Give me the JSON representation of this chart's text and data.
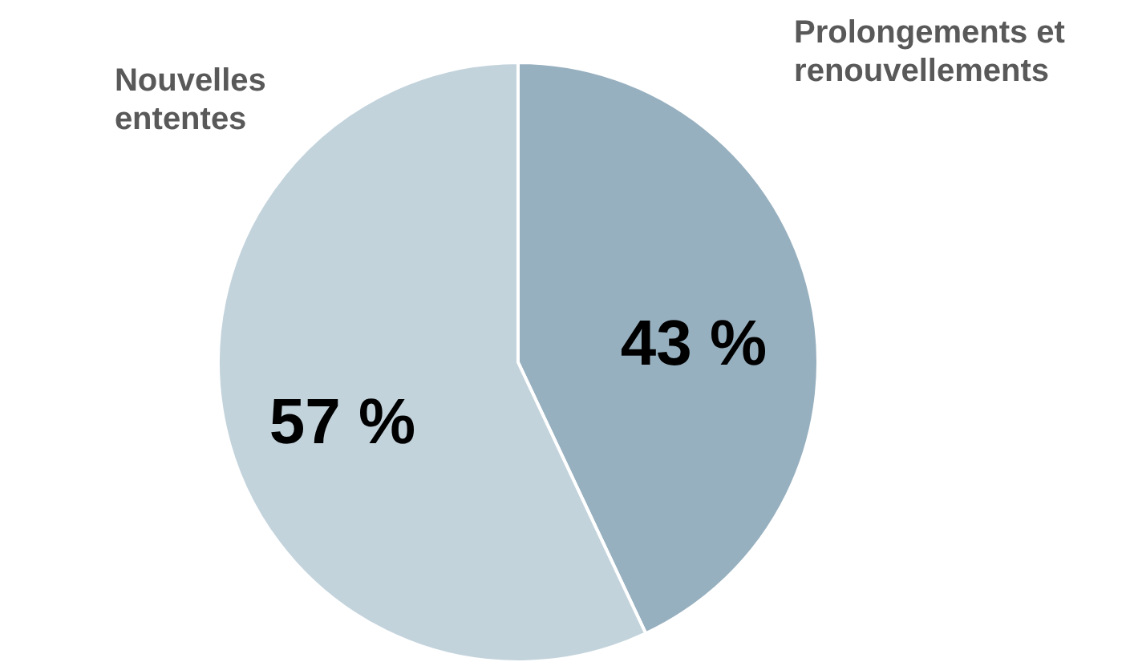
{
  "chart_data": {
    "type": "pie",
    "categories": [
      "Prolongements et renouvellements",
      "Nouvelles ententes"
    ],
    "values": [
      43,
      57
    ],
    "colors": [
      "#97b0bf",
      "#c3d3dc"
    ],
    "value_labels": [
      "43 %",
      "57 %"
    ]
  }
}
